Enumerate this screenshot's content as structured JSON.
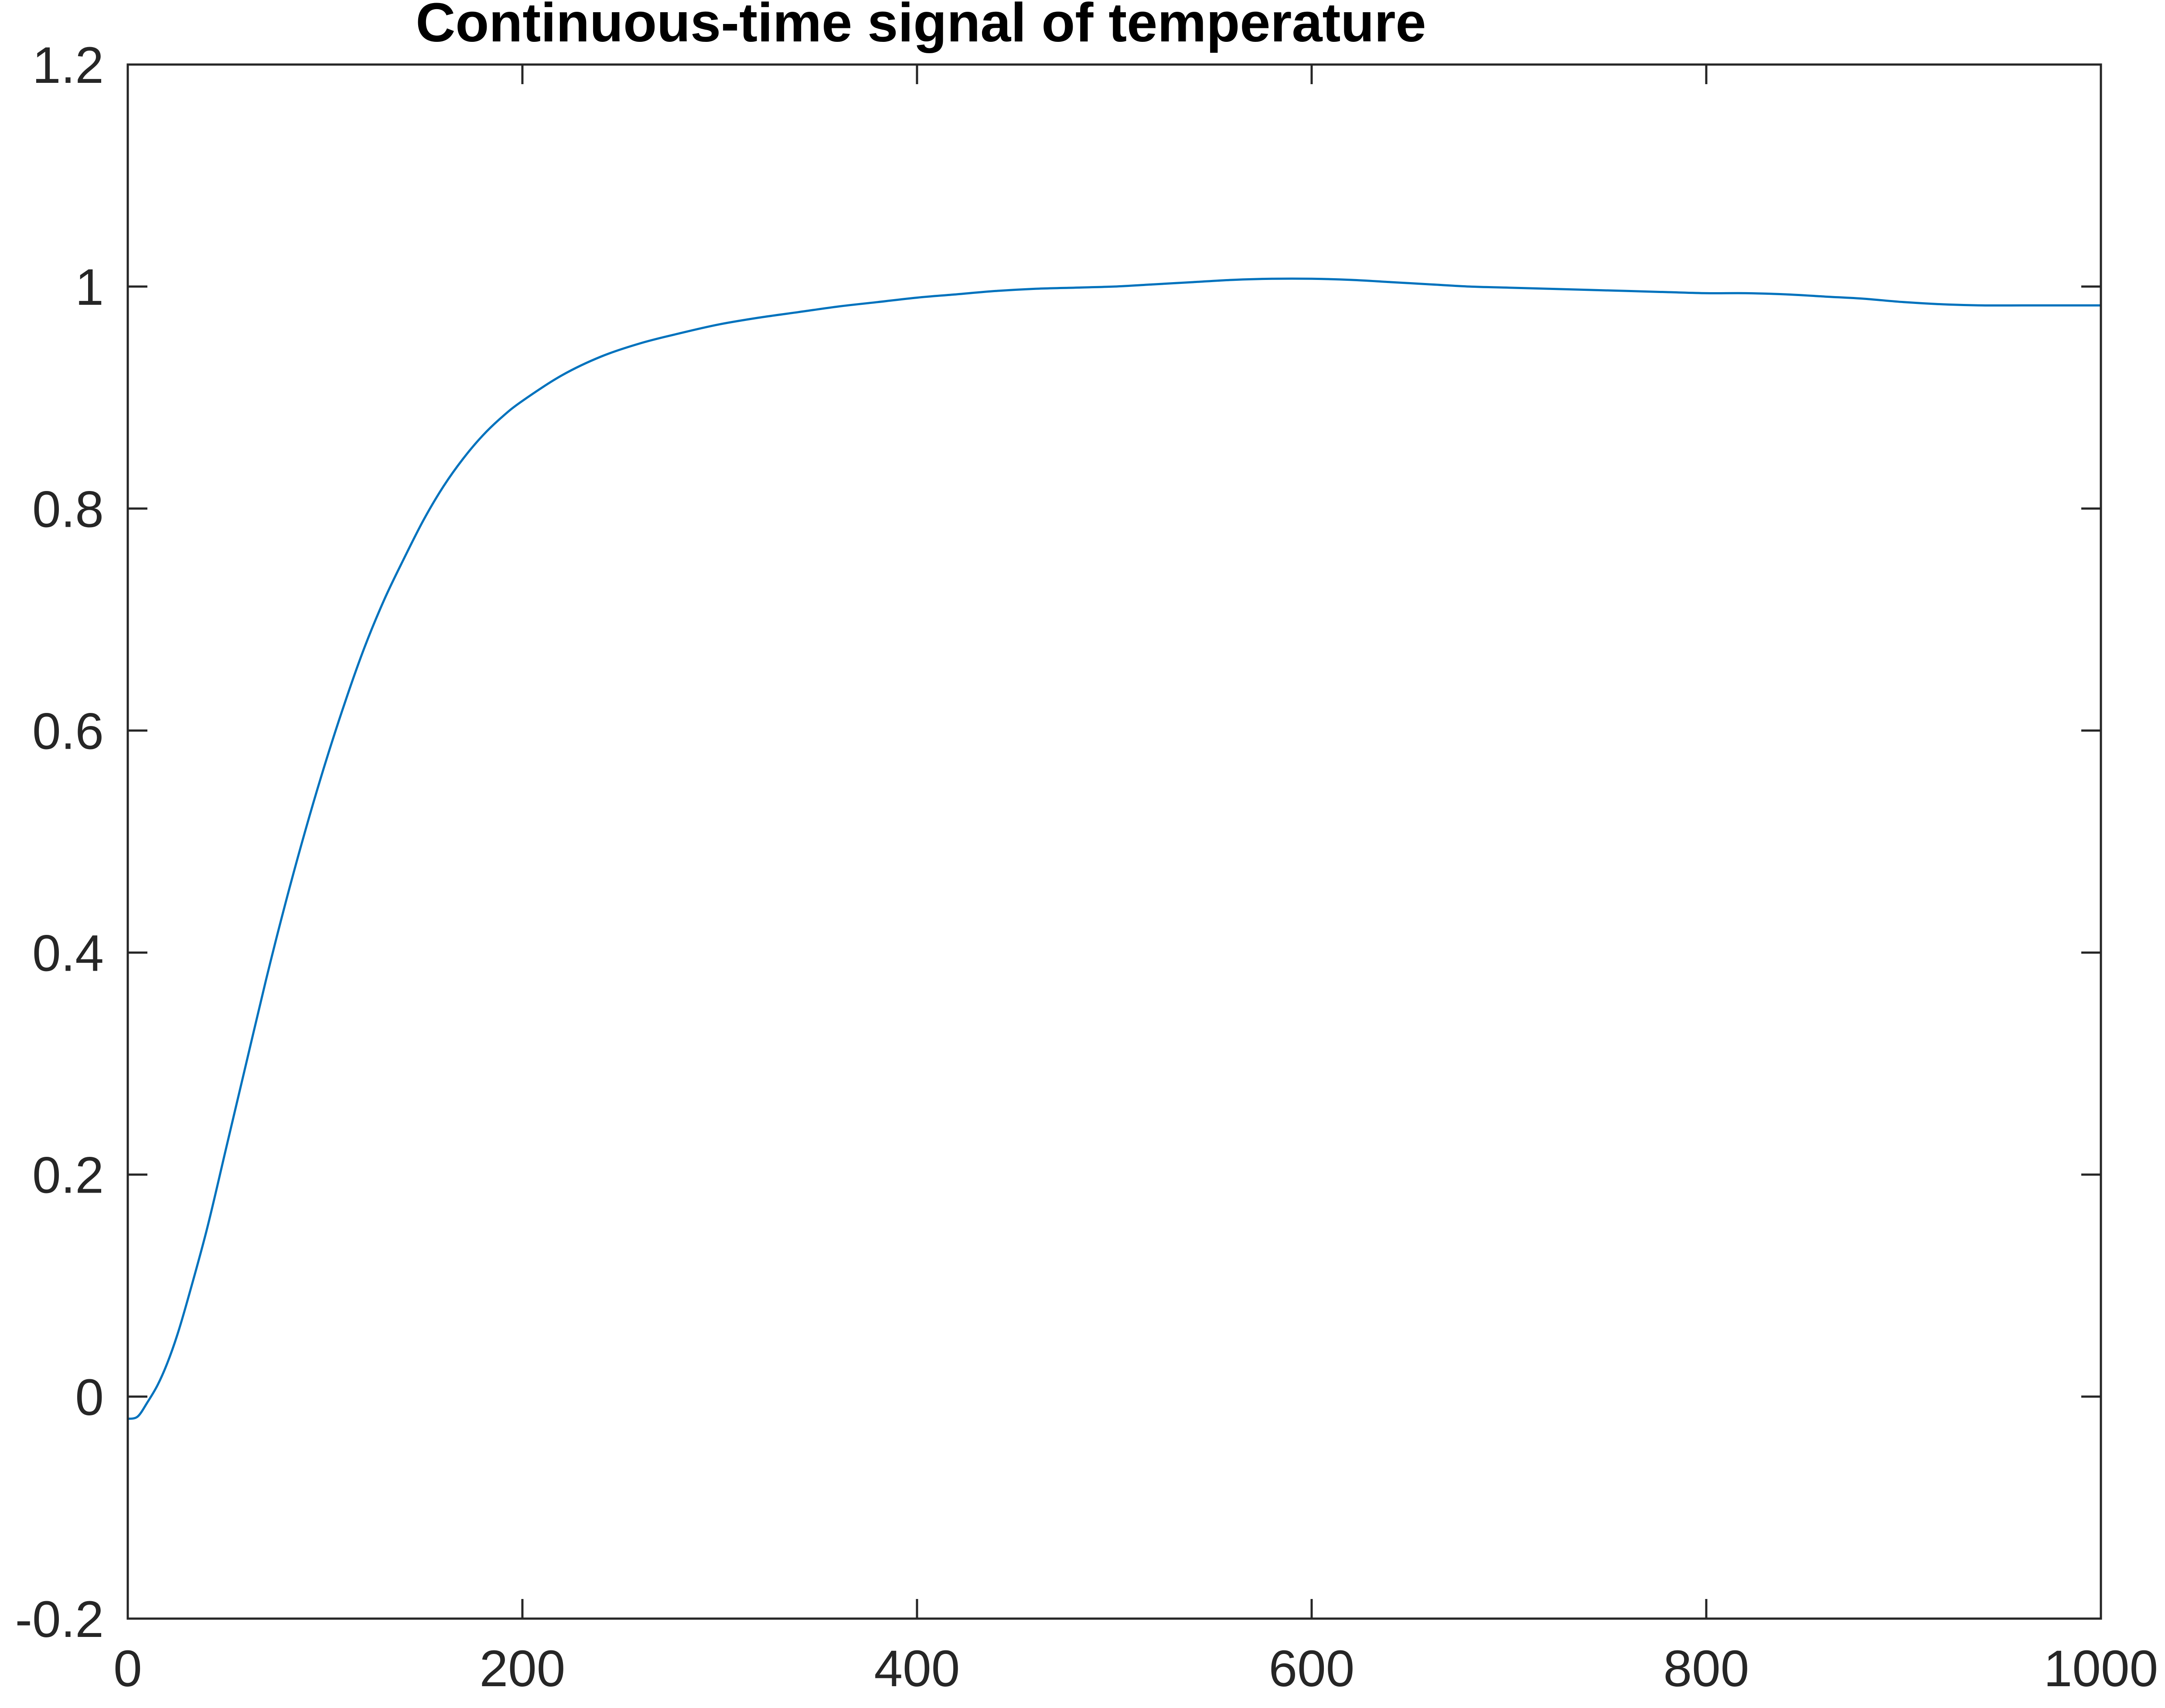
{
  "chart_data": {
    "type": "line",
    "title": "Continuous-time signal of temperature",
    "xlabel": "",
    "ylabel": "",
    "xlim": [
      0,
      1000
    ],
    "ylim": [
      -0.2,
      1.2
    ],
    "grid": false,
    "box": true,
    "x_ticks": [
      0,
      200,
      400,
      600,
      800,
      1000
    ],
    "x_tick_labels": [
      "0",
      "200",
      "400",
      "600",
      "800",
      "1000"
    ],
    "y_ticks": [
      -0.2,
      0,
      0.2,
      0.4,
      0.6,
      0.8,
      1,
      1.2
    ],
    "y_tick_labels": [
      "-0.2",
      "0",
      "0.2",
      "0.4",
      "0.6",
      "0.8",
      "1",
      "1.2"
    ],
    "series": [
      {
        "color": "#0072BD",
        "x": [
          0,
          5,
          10,
          15,
          20,
          25,
          30,
          40,
          50,
          60,
          70,
          80,
          90,
          100,
          110,
          120,
          130,
          140,
          150,
          160,
          170,
          180,
          190,
          200,
          220,
          240,
          260,
          280,
          300,
          320,
          340,
          360,
          380,
          400,
          420,
          440,
          460,
          480,
          500,
          520,
          540,
          560,
          580,
          600,
          620,
          640,
          660,
          680,
          700,
          720,
          740,
          760,
          780,
          800,
          820,
          840,
          860,
          880,
          900,
          920,
          940,
          960,
          980,
          1000
        ],
        "y": [
          -0.02,
          -0.018,
          -0.005,
          0.01,
          0.03,
          0.055,
          0.085,
          0.15,
          0.225,
          0.3,
          0.375,
          0.445,
          0.51,
          0.57,
          0.625,
          0.675,
          0.718,
          0.755,
          0.79,
          0.82,
          0.845,
          0.866,
          0.883,
          0.897,
          0.92,
          0.937,
          0.949,
          0.958,
          0.966,
          0.972,
          0.977,
          0.982,
          0.986,
          0.99,
          0.993,
          0.996,
          0.998,
          0.999,
          1.0,
          1.002,
          1.004,
          1.006,
          1.007,
          1.007,
          1.006,
          1.004,
          1.002,
          1.0,
          0.999,
          0.998,
          0.997,
          0.996,
          0.995,
          0.994,
          0.994,
          0.993,
          0.991,
          0.989,
          0.986,
          0.984,
          0.983,
          0.983,
          0.983,
          0.983
        ]
      }
    ]
  }
}
